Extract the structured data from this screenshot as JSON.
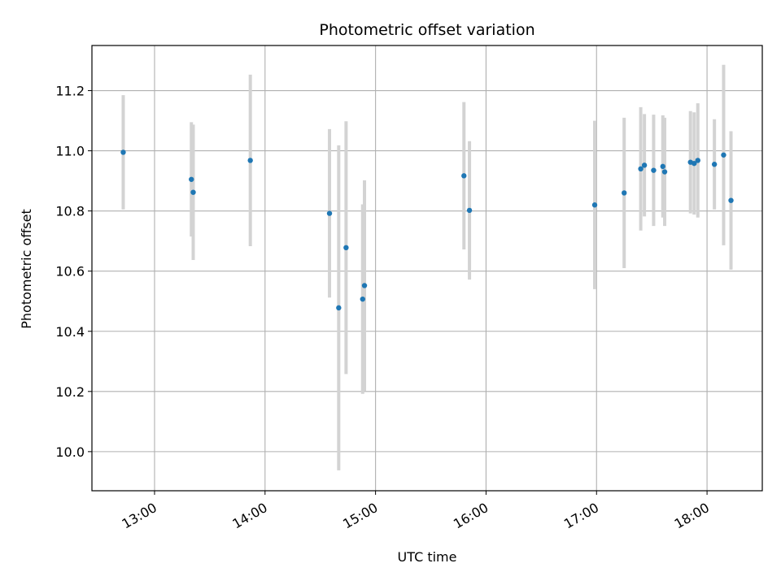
{
  "chart_data": {
    "type": "scatter",
    "title": "Photometric offset variation",
    "xlabel": "UTC time",
    "ylabel": "Photometric offset",
    "x_ticks": [
      "13:00",
      "14:00",
      "15:00",
      "16:00",
      "17:00",
      "18:00"
    ],
    "y_ticks": [
      "10.0",
      "10.2",
      "10.4",
      "10.6",
      "10.8",
      "11.0",
      "11.2"
    ],
    "xlim": [
      "12:26",
      "18:30"
    ],
    "ylim": [
      9.87,
      11.35
    ],
    "grid": true,
    "colors": {
      "points": "#1f77b4",
      "errorbars": "#d3d3d3",
      "grid": "#b0b0b0"
    },
    "series": [
      {
        "points": [
          {
            "x": "12:43",
            "y": 10.995,
            "err": 0.19
          },
          {
            "x": "13:20",
            "y": 10.905,
            "err": 0.19
          },
          {
            "x": "13:21",
            "y": 10.862,
            "err": 0.225
          },
          {
            "x": "13:52",
            "y": 10.968,
            "err": 0.285
          },
          {
            "x": "14:35",
            "y": 10.792,
            "err": 0.28
          },
          {
            "x": "14:40",
            "y": 10.478,
            "err": 0.54
          },
          {
            "x": "14:44",
            "y": 10.678,
            "err": 0.42
          },
          {
            "x": "14:53",
            "y": 10.507,
            "err": 0.315
          },
          {
            "x": "14:54",
            "y": 10.552,
            "err": 0.35
          },
          {
            "x": "15:48",
            "y": 10.917,
            "err": 0.245
          },
          {
            "x": "15:51",
            "y": 10.802,
            "err": 0.23
          },
          {
            "x": "16:59",
            "y": 10.82,
            "err": 0.28
          },
          {
            "x": "17:15",
            "y": 10.86,
            "err": 0.25
          },
          {
            "x": "17:24",
            "y": 10.94,
            "err": 0.205
          },
          {
            "x": "17:26",
            "y": 10.952,
            "err": 0.17
          },
          {
            "x": "17:31",
            "y": 10.935,
            "err": 0.185
          },
          {
            "x": "17:36",
            "y": 10.948,
            "err": 0.17
          },
          {
            "x": "17:37",
            "y": 10.93,
            "err": 0.18
          },
          {
            "x": "17:51",
            "y": 10.962,
            "err": 0.17
          },
          {
            "x": "17:53",
            "y": 10.958,
            "err": 0.17
          },
          {
            "x": "17:55",
            "y": 10.968,
            "err": 0.19
          },
          {
            "x": "18:04",
            "y": 10.955,
            "err": 0.15
          },
          {
            "x": "18:09",
            "y": 10.986,
            "err": 0.3
          },
          {
            "x": "18:13",
            "y": 10.835,
            "err": 0.23
          }
        ]
      }
    ]
  }
}
